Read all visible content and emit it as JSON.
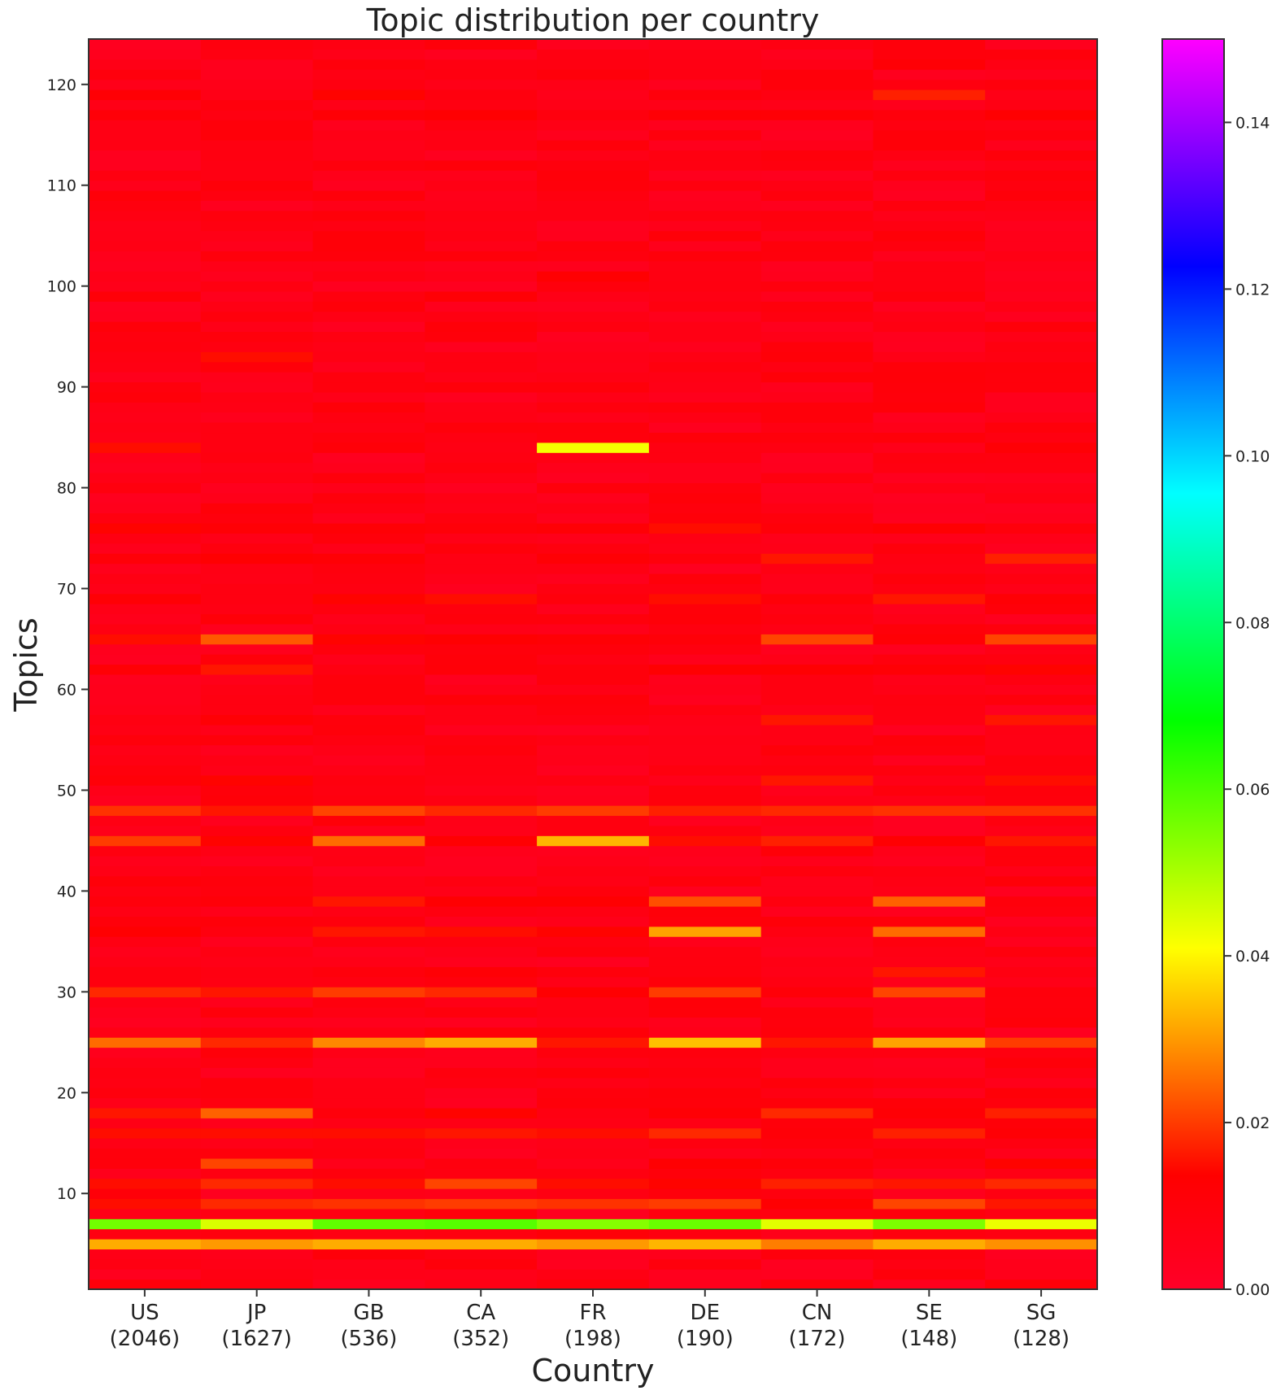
{
  "chart_data": {
    "type": "heatmap",
    "title": "Topic distribution per country",
    "xlabel": "Country",
    "ylabel": "Topics",
    "categories": [
      "US",
      "JP",
      "GB",
      "CA",
      "FR",
      "DE",
      "CN",
      "SE",
      "SG"
    ],
    "category_counts": [
      "(2046)",
      "(1627)",
      "(536)",
      "(352)",
      "(198)",
      "(190)",
      "(172)",
      "(148)",
      "(128)"
    ],
    "y_range": [
      1,
      120
    ],
    "y_ticks": [
      10,
      20,
      30,
      40,
      50,
      60,
      70,
      80,
      90,
      100,
      110,
      120
    ],
    "colorbar": {
      "min": 0.0,
      "max": 0.15,
      "ticks": [
        "0.00",
        "0.02",
        "0.04",
        "0.06",
        "0.08",
        "0.10",
        "0.12",
        "0.14"
      ],
      "colormap": "gist_rainbow_r",
      "stops": [
        "#ff0028",
        "#ff0000",
        "#ff8000",
        "#ffff00",
        "#80ff00",
        "#00ff00",
        "#00ff80",
        "#00ffff",
        "#0080ff",
        "#0000ff",
        "#8000ff",
        "#ff00ff"
      ]
    },
    "default_value": 0.007,
    "highlights": {
      "5": [
        0.032,
        0.03,
        0.032,
        0.032,
        0.03,
        0.033,
        0.027,
        0.032,
        0.029
      ],
      "7": [
        0.056,
        0.045,
        0.058,
        0.059,
        0.054,
        0.057,
        0.044,
        0.055,
        0.043
      ],
      "9": [
        0.015,
        0.018,
        0.019,
        0.02,
        0.019,
        0.02,
        0.013,
        0.021,
        0.016
      ],
      "11": [
        0.015,
        0.018,
        0.015,
        0.021,
        0.015,
        0.014,
        0.017,
        0.016,
        0.018
      ],
      "13": [
        0.01,
        0.021,
        0.005,
        0.009,
        0.005,
        0.013,
        0.011,
        0.008,
        0.014
      ],
      "16": [
        0.015,
        0.015,
        0.015,
        0.016,
        0.015,
        0.018,
        0.011,
        0.017,
        0.012
      ],
      "18": [
        0.016,
        0.024,
        0.01,
        0.014,
        0.008,
        0.012,
        0.018,
        0.012,
        0.017
      ],
      "25": [
        0.025,
        0.018,
        0.028,
        0.032,
        0.016,
        0.034,
        0.016,
        0.031,
        0.02
      ],
      "30": [
        0.018,
        0.016,
        0.02,
        0.018,
        0.013,
        0.02,
        0.011,
        0.021,
        0.01
      ],
      "32": [
        0.009,
        0.008,
        0.01,
        0.012,
        0.01,
        0.009,
        0.006,
        0.016,
        0.008
      ],
      "36": [
        0.013,
        0.009,
        0.016,
        0.015,
        0.014,
        0.031,
        0.008,
        0.025,
        0.007
      ],
      "39": [
        0.01,
        0.011,
        0.016,
        0.013,
        0.013,
        0.022,
        0.009,
        0.024,
        0.01
      ],
      "45": [
        0.02,
        0.014,
        0.025,
        0.013,
        0.033,
        0.015,
        0.017,
        0.013,
        0.016
      ],
      "48": [
        0.019,
        0.016,
        0.021,
        0.018,
        0.02,
        0.017,
        0.018,
        0.019,
        0.019
      ],
      "51": [
        0.011,
        0.014,
        0.009,
        0.007,
        0.008,
        0.005,
        0.016,
        0.006,
        0.015
      ],
      "57": [
        0.008,
        0.012,
        0.01,
        0.007,
        0.008,
        0.006,
        0.016,
        0.008,
        0.016
      ],
      "62": [
        0.012,
        0.016,
        0.008,
        0.011,
        0.01,
        0.013,
        0.013,
        0.012,
        0.014
      ],
      "65": [
        0.015,
        0.023,
        0.014,
        0.013,
        0.012,
        0.011,
        0.021,
        0.012,
        0.021
      ],
      "69": [
        0.012,
        0.008,
        0.014,
        0.015,
        0.01,
        0.015,
        0.011,
        0.016,
        0.012
      ],
      "73": [
        0.011,
        0.013,
        0.012,
        0.007,
        0.012,
        0.01,
        0.016,
        0.008,
        0.017
      ],
      "76": [
        0.014,
        0.012,
        0.012,
        0.011,
        0.012,
        0.015,
        0.011,
        0.013,
        0.01
      ],
      "84": [
        0.015,
        0.008,
        0.011,
        0.007,
        0.042,
        0.008,
        0.008,
        0.005,
        0.012
      ],
      "93": [
        0.008,
        0.015,
        0.007,
        0.008,
        0.006,
        0.007,
        0.011,
        0.006,
        0.008
      ],
      "99": [
        0.011,
        0.004,
        0.009,
        0.012,
        0.006,
        0.007,
        0.004,
        0.01,
        0.004
      ],
      "101": [
        0.006,
        0.004,
        0.008,
        0.006,
        0.013,
        0.008,
        0.004,
        0.008,
        0.004
      ],
      "105": [
        0.006,
        0.006,
        0.011,
        0.008,
        0.004,
        0.011,
        0.005,
        0.011,
        0.005
      ],
      "117": [
        0.011,
        0.008,
        0.012,
        0.013,
        0.009,
        0.012,
        0.012,
        0.01,
        0.013
      ],
      "119": [
        0.012,
        0.006,
        0.014,
        0.009,
        0.005,
        0.01,
        0.008,
        0.017,
        0.006
      ],
      "122": [
        0.006,
        0.004,
        0.01,
        0.008,
        0.008,
        0.007,
        0.006,
        0.012,
        0.007
      ]
    }
  }
}
